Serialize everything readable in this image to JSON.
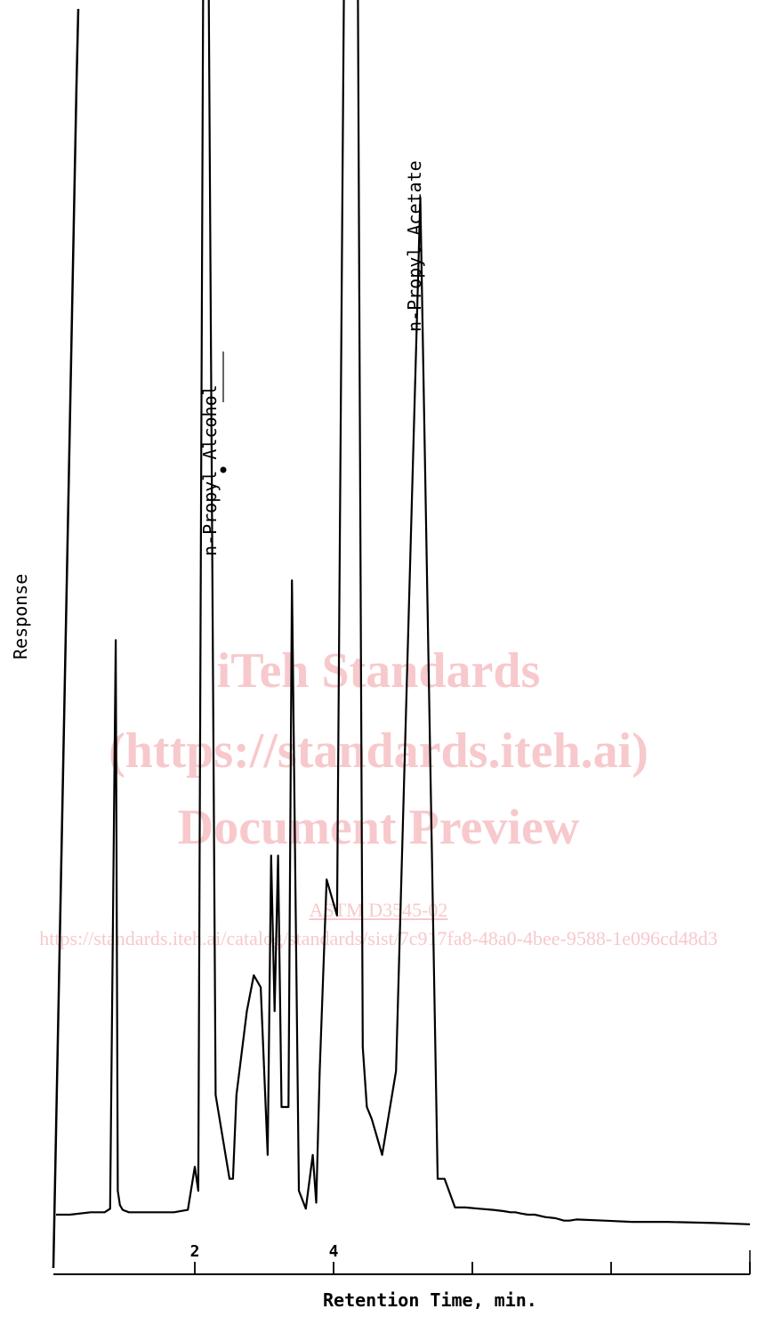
{
  "watermark": {
    "line1": "iTeh Standards",
    "line2": "(https://standards.iteh.ai)",
    "line3": "Document Preview",
    "doc_id": "ASTM D3545-02",
    "url": "https://standards.iteh.ai/catalog/standards/sist/7c917fa8-48a0-4bee-9588-1e096cd48d3"
  },
  "chart_data": {
    "type": "line",
    "title": "",
    "xlabel": "Retention Time, min.",
    "ylabel": "Response",
    "xlim": [
      0,
      10
    ],
    "ylim": [
      0,
      100
    ],
    "x_ticks": [
      2,
      4,
      6,
      8,
      10
    ],
    "x_tick_labels": [
      "2",
      "4",
      "",
      "",
      ""
    ],
    "grid": false,
    "colors": {
      "trace": "#000000",
      "background": "#ffffff",
      "watermark": "#f7c9cc"
    },
    "series": [
      {
        "x": [
          0,
          0.2,
          0.5,
          0.7,
          0.78,
          0.86,
          0.89,
          0.92,
          0.96,
          1.05,
          1.3,
          1.7,
          1.9,
          2.0,
          2.05,
          2.12,
          2.15,
          2.2,
          2.3,
          2.5,
          2.55,
          2.6,
          2.75,
          2.85,
          2.95,
          3.05,
          3.1,
          3.15,
          3.2,
          3.25,
          3.35,
          3.4,
          3.5,
          3.6,
          3.7,
          3.75,
          3.8,
          3.9,
          4.05,
          4.15,
          4.25,
          4.35,
          4.42,
          4.48,
          4.55,
          4.6,
          4.7,
          4.9,
          5.25,
          5.5,
          5.6,
          5.75,
          5.9,
          6.1,
          6.3,
          6.45,
          6.55,
          6.62,
          6.7,
          6.8,
          6.9,
          7.05,
          7.2,
          7.32,
          7.4,
          7.5,
          7.9,
          8.3,
          8.8,
          9.5,
          10.0
        ],
        "y": [
          0,
          0,
          0.2,
          0.2,
          0.5,
          48,
          2,
          0.8,
          0.4,
          0.2,
          0.2,
          0.2,
          0.4,
          4,
          2,
          103,
          103,
          103,
          10,
          3,
          3,
          10,
          17,
          20,
          19,
          5,
          30,
          17,
          30,
          9,
          9,
          53,
          2,
          0.5,
          5,
          1,
          12,
          28,
          25,
          103,
          103,
          103,
          14,
          9,
          8,
          7,
          5,
          12,
          85,
          3,
          3,
          0.6,
          0.6,
          0.5,
          0.4,
          0.3,
          0.2,
          0.2,
          0.1,
          0,
          0,
          -0.2,
          -0.3,
          -0.5,
          -0.5,
          -0.4,
          -0.5,
          -0.6,
          -0.6,
          -0.7,
          -0.8
        ]
      }
    ],
    "annotations": [
      {
        "text": "n-Propyl Alcohol"
      },
      {
        "text": "n-Propyl Acetate"
      }
    ]
  }
}
